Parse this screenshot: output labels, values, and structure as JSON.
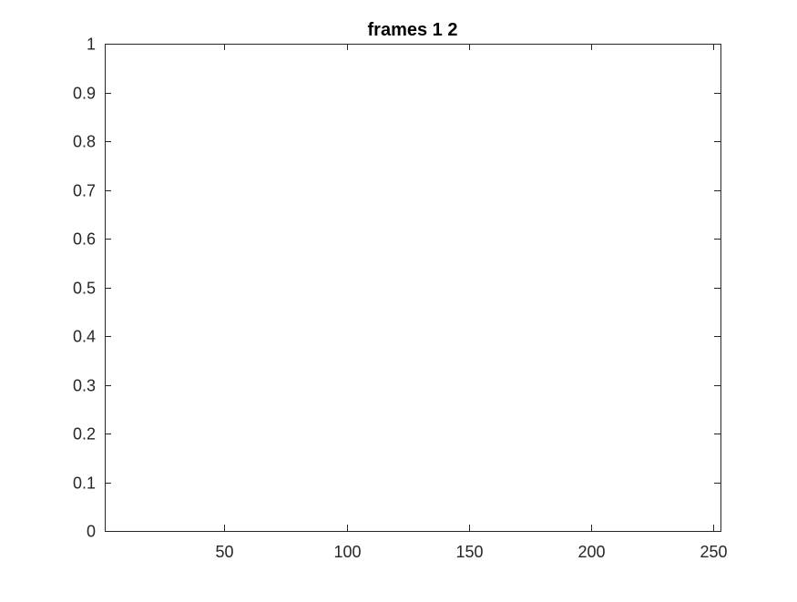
{
  "chart_data": {
    "type": "line",
    "title": "frames 1 2",
    "xlabel": "",
    "ylabel": "",
    "xlim": [
      1,
      253
    ],
    "ylim": [
      0,
      1
    ],
    "x_ticks": [
      50,
      100,
      150,
      200,
      250
    ],
    "x_tick_labels": [
      "50",
      "100",
      "150",
      "200",
      "250"
    ],
    "y_ticks": [
      0,
      0.1,
      0.2,
      0.3,
      0.4,
      0.5,
      0.6,
      0.7,
      0.8,
      0.9,
      1
    ],
    "y_tick_labels": [
      "0",
      "0.1",
      "0.2",
      "0.3",
      "0.4",
      "0.5",
      "0.6",
      "0.7",
      "0.8",
      "0.9",
      "1"
    ],
    "series": [],
    "grid": false,
    "box": true,
    "colors": {
      "axis": "#262626",
      "title": "#000000",
      "background": "#ffffff"
    }
  }
}
